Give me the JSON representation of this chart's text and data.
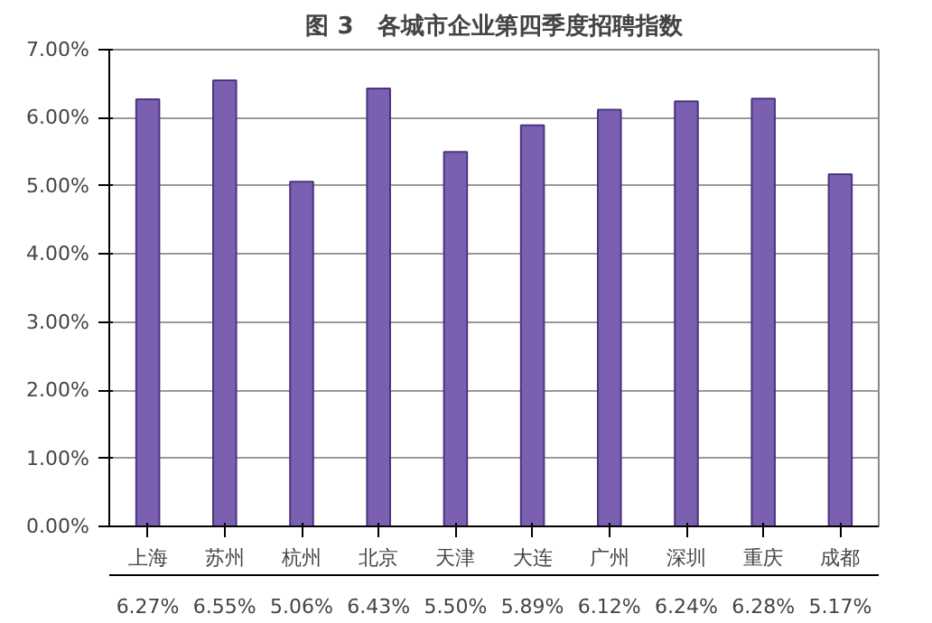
{
  "chart_data": {
    "type": "bar",
    "title": "图 3　各城市企业第四季度招聘指数",
    "categories": [
      "上海",
      "苏州",
      "杭州",
      "北京",
      "天津",
      "大连",
      "广州",
      "深圳",
      "重庆",
      "成都"
    ],
    "values": [
      6.27,
      6.55,
      5.06,
      6.43,
      5.5,
      5.89,
      6.12,
      6.24,
      6.28,
      5.17
    ],
    "value_labels": [
      "6.27%",
      "6.55%",
      "5.06%",
      "6.43%",
      "5.50%",
      "5.89%",
      "6.12%",
      "6.24%",
      "6.28%",
      "5.17%"
    ],
    "color": "#7b5fb0",
    "ylim": [
      0,
      7
    ],
    "yticks": [
      {
        "value": 0,
        "label": "0.00%"
      },
      {
        "value": 1,
        "label": "1.00%"
      },
      {
        "value": 2,
        "label": "2.00%"
      },
      {
        "value": 3,
        "label": "3.00%"
      },
      {
        "value": 4,
        "label": "4.00%"
      },
      {
        "value": 5,
        "label": "5.00%"
      },
      {
        "value": 6,
        "label": "6.00%"
      },
      {
        "value": 7,
        "label": "7.00%"
      }
    ],
    "grid": "y"
  }
}
